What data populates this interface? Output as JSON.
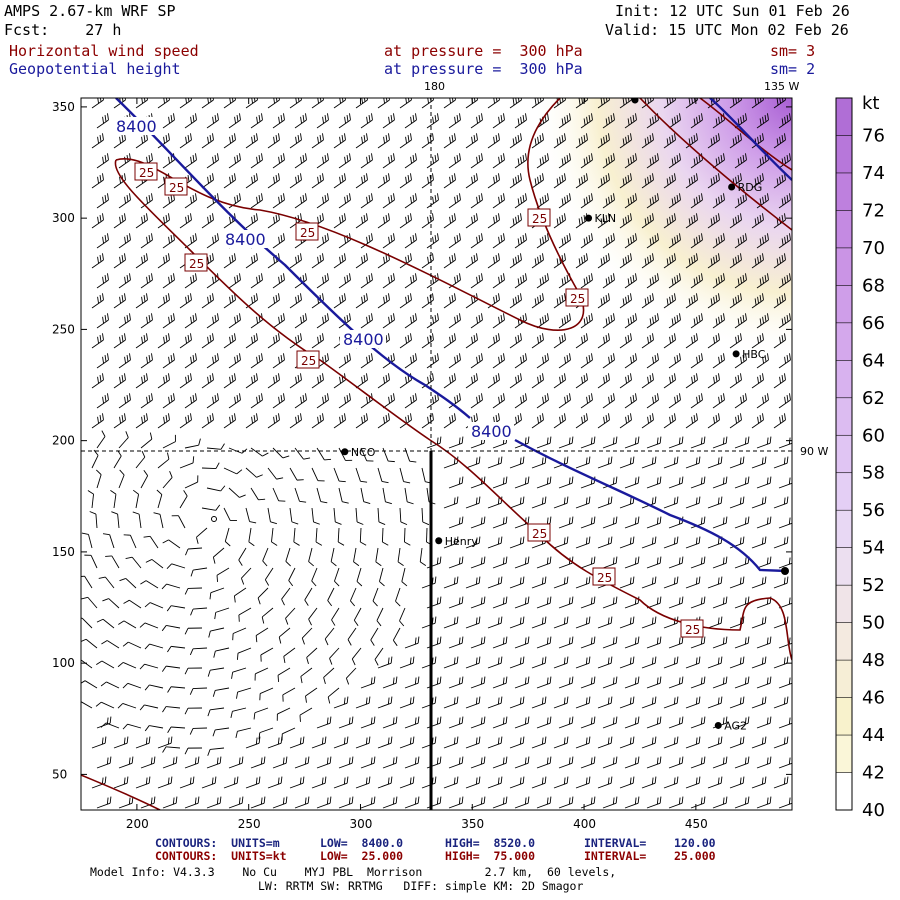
{
  "header": {
    "model": "AMPS 2.67-km WRF SP",
    "forecast": "Fcst:    27 h",
    "init": "Init: 12 UTC Sun 01 Feb 26",
    "valid": "Valid: 15 UTC Mon 02 Feb 26",
    "field1": "Horizontal wind speed",
    "field2": "Geopotential height",
    "level1": "at pressure =  300 hPa",
    "level2": "at pressure =  300 hPa",
    "smooth1": "sm= 3",
    "smooth2": "sm= 2"
  },
  "map": {
    "meridian_top": "180",
    "meridian_right_top": "135 W",
    "meridian_right": "90 W",
    "x_ticks": [
      "200",
      "250",
      "300",
      "350",
      "400",
      "450"
    ],
    "y_ticks": [
      "350",
      "300",
      "250",
      "200",
      "150",
      "100",
      "50"
    ],
    "stations": [
      {
        "id": "KLN",
        "label": "KLN",
        "x": 402,
        "y": 300
      },
      {
        "id": "RDG",
        "label": "RDG",
        "x": 466,
        "y": 314
      },
      {
        "id": "HBC",
        "label": "HBC",
        "x": 468,
        "y": 239
      },
      {
        "id": "NCO",
        "label": "NCO",
        "x": 293,
        "y": 195
      },
      {
        "id": "Henry",
        "label": "Henry",
        "x": 335,
        "y": 155
      },
      {
        "id": "AG2",
        "label": "AG2",
        "x": 460,
        "y": 72
      }
    ],
    "height_labels": [
      "8400",
      "8400",
      "8400",
      "8400"
    ],
    "speed_labels": [
      "25",
      "25",
      "25",
      "25",
      "25",
      "25",
      "25",
      "25",
      "25",
      "25"
    ],
    "colors": {
      "height": "#1a1a9c",
      "speed": "#7a0000",
      "barb": "#000000"
    }
  },
  "colorbar": {
    "unit": "kt",
    "levels": [
      "76",
      "74",
      "72",
      "70",
      "68",
      "66",
      "64",
      "62",
      "60",
      "58",
      "56",
      "54",
      "52",
      "50",
      "48",
      "46",
      "44",
      "42",
      "40"
    ],
    "colors": [
      "#b06ed6",
      "#b777da",
      "#be80de",
      "#c48ae2",
      "#ca94e5",
      "#cf9ee9",
      "#d4a8ec",
      "#d8b2ef",
      "#dcbcf1",
      "#e0c5f3",
      "#e4cff5",
      "#e8d8f4",
      "#ecdff0",
      "#f0e4e8",
      "#f4eae0",
      "#f6eed6",
      "#f8f2cc",
      "#faf6d8",
      "#ffffff"
    ]
  },
  "footer": {
    "c1_label": "CONTOURS:  UNITS=m",
    "c1_low": "LOW=  8400.0",
    "c1_high": "HIGH=  8520.0",
    "c1_int": "INTERVAL=    120.00",
    "c2_label": "CONTOURS:  UNITS=kt",
    "c2_low": "LOW=  25.000",
    "c2_high": "HIGH=  75.000",
    "c2_int": "INTERVAL=    25.000",
    "info1": "Model Info: V4.3.3    No Cu    MYJ PBL  Morrison         2.7 km,  60 levels,",
    "info2": "LW: RRTM SW: RRTMG   DIFF: simple KM: 2D Smagor"
  }
}
